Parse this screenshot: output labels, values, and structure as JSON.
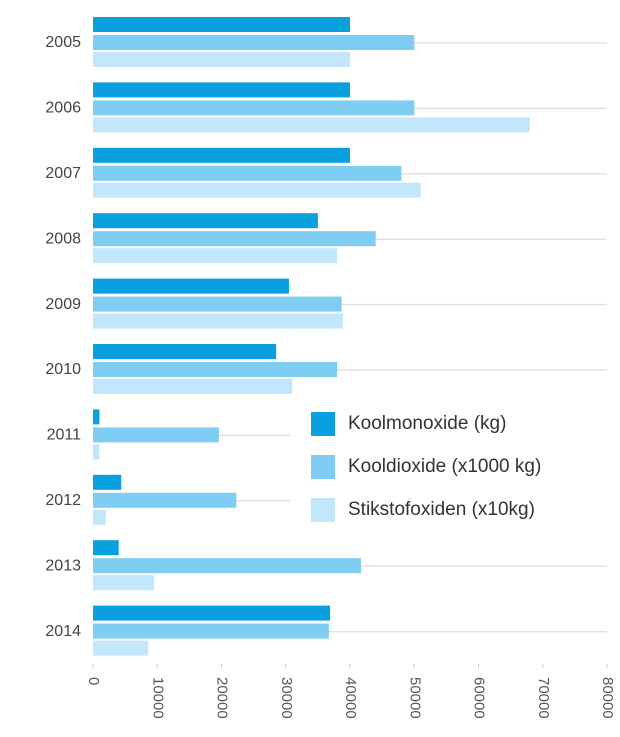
{
  "chart_data": {
    "type": "bar",
    "orientation": "horizontal",
    "categories": [
      "2005",
      "2006",
      "2007",
      "2008",
      "2009",
      "2010",
      "2011",
      "2012",
      "2013",
      "2014"
    ],
    "series": [
      {
        "name": "Koolmonoxide (kg)",
        "color": "#0aa0e0",
        "values": [
          40000,
          40000,
          40000,
          35000,
          30500,
          28500,
          1000,
          4400,
          4000,
          36900
        ]
      },
      {
        "name": "Kooldioxide (x1000 kg)",
        "color": "#7fcdf2",
        "values": [
          50000,
          50000,
          48000,
          44000,
          38700,
          38000,
          19600,
          22300,
          41700,
          36700
        ]
      },
      {
        "name": "Stikstofoxiden (x10kg)",
        "color": "#c3e7fa",
        "values": [
          40000,
          68000,
          51000,
          38000,
          38900,
          31000,
          1000,
          2000,
          9500,
          8600
        ]
      }
    ],
    "xlim": [
      0,
      80000
    ],
    "xticks": [
      0,
      10000,
      20000,
      30000,
      40000,
      50000,
      60000,
      70000,
      80000
    ],
    "grid": true,
    "legend_position": "center right"
  }
}
